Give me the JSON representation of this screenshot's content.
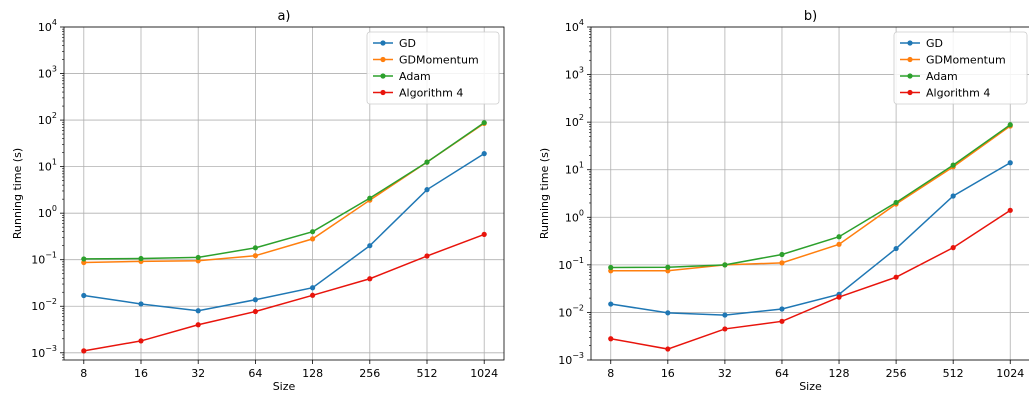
{
  "chart_data": [
    {
      "type": "line",
      "title": "a)",
      "xlabel": "Size",
      "ylabel": "Running time (s)",
      "x": [
        8,
        16,
        32,
        64,
        128,
        256,
        512,
        1024
      ],
      "x_scale": "log2",
      "y_scale": "log10",
      "ylim": [
        0.0007,
        10000
      ],
      "grid": true,
      "legend_position": "top-right",
      "x_tick_labels": [
        "8",
        "16",
        "32",
        "64",
        "128",
        "256",
        "512",
        "1024"
      ],
      "y_ticks": [
        {
          "value": 0.001,
          "base": "10",
          "exp": "−3"
        },
        {
          "value": 0.01,
          "base": "10",
          "exp": "−2"
        },
        {
          "value": 0.1,
          "base": "10",
          "exp": "−1"
        },
        {
          "value": 1,
          "base": "10",
          "exp": "0"
        },
        {
          "value": 10,
          "base": "10",
          "exp": "1"
        },
        {
          "value": 100,
          "base": "10",
          "exp": "2"
        },
        {
          "value": 1000,
          "base": "10",
          "exp": "3"
        },
        {
          "value": 10000,
          "base": "10",
          "exp": "4"
        }
      ],
      "series": [
        {
          "name": "GD",
          "color": "#1f77b4",
          "values": [
            0.017,
            0.0112,
            0.008,
            0.0138,
            0.025,
            0.2,
            3.2,
            19
          ]
        },
        {
          "name": "GDMomentum",
          "color": "#ff7f0e",
          "values": [
            0.087,
            0.092,
            0.095,
            0.122,
            0.28,
            1.9,
            12.5,
            85
          ]
        },
        {
          "name": "Adam",
          "color": "#2ca02c",
          "values": [
            0.104,
            0.106,
            0.112,
            0.18,
            0.4,
            2.1,
            12.5,
            88
          ]
        },
        {
          "name": "Algorithm 4",
          "color": "#e8140c",
          "values": [
            0.0011,
            0.0018,
            0.004,
            0.0077,
            0.0172,
            0.039,
            0.12,
            0.35
          ]
        }
      ]
    },
    {
      "type": "line",
      "title": "b)",
      "xlabel": "Size",
      "ylabel": "Running time (s)",
      "x": [
        8,
        16,
        32,
        64,
        128,
        256,
        512,
        1024
      ],
      "x_scale": "log2",
      "y_scale": "log10",
      "ylim": [
        0.001,
        10000
      ],
      "grid": true,
      "legend_position": "top-right",
      "x_tick_labels": [
        "8",
        "16",
        "32",
        "64",
        "128",
        "256",
        "512",
        "1024"
      ],
      "y_ticks": [
        {
          "value": 0.001,
          "base": "10",
          "exp": "−3"
        },
        {
          "value": 0.01,
          "base": "10",
          "exp": "−2"
        },
        {
          "value": 0.1,
          "base": "10",
          "exp": "−1"
        },
        {
          "value": 1,
          "base": "10",
          "exp": "0"
        },
        {
          "value": 10,
          "base": "10",
          "exp": "1"
        },
        {
          "value": 100,
          "base": "10",
          "exp": "2"
        },
        {
          "value": 1000,
          "base": "10",
          "exp": "3"
        },
        {
          "value": 10000,
          "base": "10",
          "exp": "4"
        }
      ],
      "series": [
        {
          "name": "GD",
          "color": "#1f77b4",
          "values": [
            0.015,
            0.0098,
            0.0088,
            0.0118,
            0.024,
            0.22,
            2.8,
            14
          ]
        },
        {
          "name": "GDMomentum",
          "color": "#ff7f0e",
          "values": [
            0.075,
            0.075,
            0.1,
            0.11,
            0.27,
            1.9,
            11.5,
            83
          ]
        },
        {
          "name": "Adam",
          "color": "#2ca02c",
          "values": [
            0.088,
            0.089,
            0.1,
            0.165,
            0.39,
            2.05,
            12.5,
            88
          ]
        },
        {
          "name": "Algorithm 4",
          "color": "#e8140c",
          "values": [
            0.0028,
            0.0017,
            0.0045,
            0.0065,
            0.021,
            0.055,
            0.23,
            1.4
          ]
        }
      ]
    }
  ]
}
